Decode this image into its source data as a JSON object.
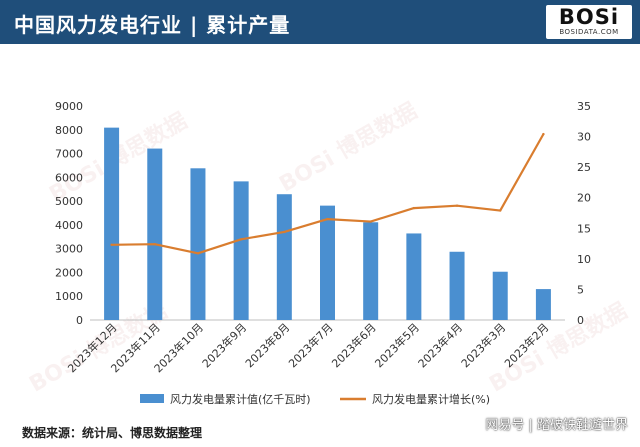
{
  "header": {
    "title": "中国风力发电行业 | 累计产量",
    "logo_text": "BOSi",
    "logo_sub": "BOSIDATA.COM"
  },
  "footer": {
    "source": "数据来源：统计局、博思数据整理",
    "brand": "网易号 | 踏破铁鞋遊世界"
  },
  "colors": {
    "header_bg": "#1f4e7a",
    "bar": "#4a8fd0",
    "line": "#d97d2f",
    "grid": "#d9d9d9"
  },
  "chart_data": {
    "type": "bar",
    "categories": [
      "2023年12月",
      "2023年11月",
      "2023年10月",
      "2023年9月",
      "2023年8月",
      "2023年7月",
      "2023年6月",
      "2023年5月",
      "2023年4月",
      "2023年3月",
      "2023年2月"
    ],
    "series": [
      {
        "name": "风力发电量累计值(亿千瓦时)",
        "type": "bar",
        "axis": "left",
        "values": [
          8090,
          7210,
          6380,
          5830,
          5290,
          4810,
          4110,
          3640,
          2870,
          2030,
          1300
        ]
      },
      {
        "name": "风力发电量累计增长(%)",
        "type": "line",
        "axis": "right",
        "values": [
          12.3,
          12.4,
          10.9,
          13.2,
          14.4,
          16.5,
          16.1,
          18.3,
          18.7,
          17.9,
          30.4
        ]
      }
    ],
    "y_left": {
      "min": 0,
      "max": 9000,
      "ticks": [
        0,
        1000,
        2000,
        3000,
        4000,
        5000,
        6000,
        7000,
        8000,
        9000
      ]
    },
    "y_right": {
      "min": 0,
      "max": 35,
      "ticks": [
        0,
        5,
        10,
        15,
        20,
        25,
        30,
        35
      ]
    },
    "grid": false,
    "legend_position": "bottom",
    "watermark": "博思数据"
  }
}
